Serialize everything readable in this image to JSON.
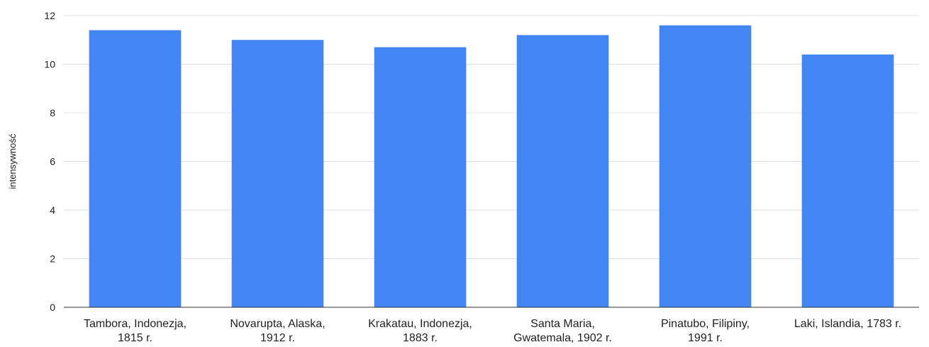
{
  "chart_data": {
    "type": "bar",
    "title": "",
    "xlabel": "",
    "ylabel": "intensywność",
    "ylim": [
      0,
      12
    ],
    "yticks": [
      0,
      2,
      4,
      6,
      8,
      10,
      12
    ],
    "grid": true,
    "legend": "none",
    "bar_color": "#4285f4",
    "categories": [
      [
        "Tambora, Indonezja,",
        "1815 r."
      ],
      [
        "Novarupta, Alaska,",
        "1912 r."
      ],
      [
        "Krakatau, Indonezja,",
        "1883 r."
      ],
      [
        "Santa Maria,",
        "Gwatemala, 1902 r."
      ],
      [
        "Pinatubo, Filipiny,",
        "1991 r."
      ],
      [
        "Laki, Islandia, 1783 r."
      ]
    ],
    "values": [
      11.4,
      11.0,
      10.7,
      11.2,
      11.6,
      10.4
    ]
  }
}
